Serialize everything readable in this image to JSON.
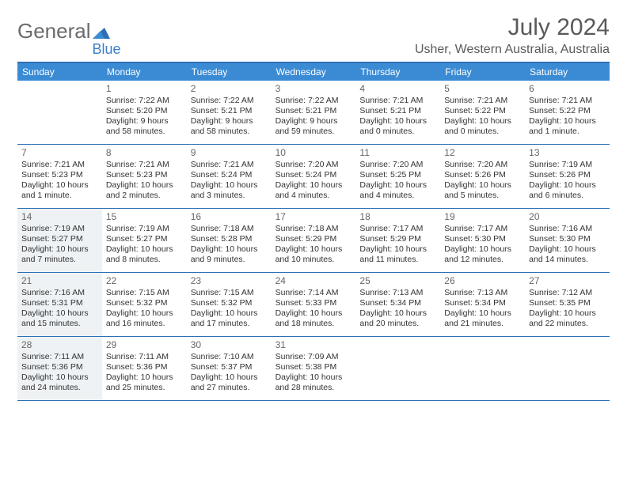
{
  "logo": {
    "text1": "General",
    "text2": "Blue"
  },
  "title": "July 2024",
  "subtitle": "Usher, Western Australia, Australia",
  "day_headers": [
    "Sunday",
    "Monday",
    "Tuesday",
    "Wednesday",
    "Thursday",
    "Friday",
    "Saturday"
  ],
  "colors": {
    "header_bg": "#3b8bd4",
    "border": "#2d6fb3",
    "shaded": "#eef2f5",
    "text": "#333333",
    "muted": "#666666"
  },
  "weeks": [
    [
      {
        "day": "",
        "sunrise": "",
        "sunset": "",
        "daylight": "",
        "shaded": false
      },
      {
        "day": "1",
        "sunrise": "Sunrise: 7:22 AM",
        "sunset": "Sunset: 5:20 PM",
        "daylight": "Daylight: 9 hours and 58 minutes.",
        "shaded": false
      },
      {
        "day": "2",
        "sunrise": "Sunrise: 7:22 AM",
        "sunset": "Sunset: 5:21 PM",
        "daylight": "Daylight: 9 hours and 58 minutes.",
        "shaded": false
      },
      {
        "day": "3",
        "sunrise": "Sunrise: 7:22 AM",
        "sunset": "Sunset: 5:21 PM",
        "daylight": "Daylight: 9 hours and 59 minutes.",
        "shaded": false
      },
      {
        "day": "4",
        "sunrise": "Sunrise: 7:21 AM",
        "sunset": "Sunset: 5:21 PM",
        "daylight": "Daylight: 10 hours and 0 minutes.",
        "shaded": false
      },
      {
        "day": "5",
        "sunrise": "Sunrise: 7:21 AM",
        "sunset": "Sunset: 5:22 PM",
        "daylight": "Daylight: 10 hours and 0 minutes.",
        "shaded": false
      },
      {
        "day": "6",
        "sunrise": "Sunrise: 7:21 AM",
        "sunset": "Sunset: 5:22 PM",
        "daylight": "Daylight: 10 hours and 1 minute.",
        "shaded": false
      }
    ],
    [
      {
        "day": "7",
        "sunrise": "Sunrise: 7:21 AM",
        "sunset": "Sunset: 5:23 PM",
        "daylight": "Daylight: 10 hours and 1 minute.",
        "shaded": false
      },
      {
        "day": "8",
        "sunrise": "Sunrise: 7:21 AM",
        "sunset": "Sunset: 5:23 PM",
        "daylight": "Daylight: 10 hours and 2 minutes.",
        "shaded": false
      },
      {
        "day": "9",
        "sunrise": "Sunrise: 7:21 AM",
        "sunset": "Sunset: 5:24 PM",
        "daylight": "Daylight: 10 hours and 3 minutes.",
        "shaded": false
      },
      {
        "day": "10",
        "sunrise": "Sunrise: 7:20 AM",
        "sunset": "Sunset: 5:24 PM",
        "daylight": "Daylight: 10 hours and 4 minutes.",
        "shaded": false
      },
      {
        "day": "11",
        "sunrise": "Sunrise: 7:20 AM",
        "sunset": "Sunset: 5:25 PM",
        "daylight": "Daylight: 10 hours and 4 minutes.",
        "shaded": false
      },
      {
        "day": "12",
        "sunrise": "Sunrise: 7:20 AM",
        "sunset": "Sunset: 5:26 PM",
        "daylight": "Daylight: 10 hours and 5 minutes.",
        "shaded": false
      },
      {
        "day": "13",
        "sunrise": "Sunrise: 7:19 AM",
        "sunset": "Sunset: 5:26 PM",
        "daylight": "Daylight: 10 hours and 6 minutes.",
        "shaded": false
      }
    ],
    [
      {
        "day": "14",
        "sunrise": "Sunrise: 7:19 AM",
        "sunset": "Sunset: 5:27 PM",
        "daylight": "Daylight: 10 hours and 7 minutes.",
        "shaded": true
      },
      {
        "day": "15",
        "sunrise": "Sunrise: 7:19 AM",
        "sunset": "Sunset: 5:27 PM",
        "daylight": "Daylight: 10 hours and 8 minutes.",
        "shaded": false
      },
      {
        "day": "16",
        "sunrise": "Sunrise: 7:18 AM",
        "sunset": "Sunset: 5:28 PM",
        "daylight": "Daylight: 10 hours and 9 minutes.",
        "shaded": false
      },
      {
        "day": "17",
        "sunrise": "Sunrise: 7:18 AM",
        "sunset": "Sunset: 5:29 PM",
        "daylight": "Daylight: 10 hours and 10 minutes.",
        "shaded": false
      },
      {
        "day": "18",
        "sunrise": "Sunrise: 7:17 AM",
        "sunset": "Sunset: 5:29 PM",
        "daylight": "Daylight: 10 hours and 11 minutes.",
        "shaded": false
      },
      {
        "day": "19",
        "sunrise": "Sunrise: 7:17 AM",
        "sunset": "Sunset: 5:30 PM",
        "daylight": "Daylight: 10 hours and 12 minutes.",
        "shaded": false
      },
      {
        "day": "20",
        "sunrise": "Sunrise: 7:16 AM",
        "sunset": "Sunset: 5:30 PM",
        "daylight": "Daylight: 10 hours and 14 minutes.",
        "shaded": false
      }
    ],
    [
      {
        "day": "21",
        "sunrise": "Sunrise: 7:16 AM",
        "sunset": "Sunset: 5:31 PM",
        "daylight": "Daylight: 10 hours and 15 minutes.",
        "shaded": true
      },
      {
        "day": "22",
        "sunrise": "Sunrise: 7:15 AM",
        "sunset": "Sunset: 5:32 PM",
        "daylight": "Daylight: 10 hours and 16 minutes.",
        "shaded": false
      },
      {
        "day": "23",
        "sunrise": "Sunrise: 7:15 AM",
        "sunset": "Sunset: 5:32 PM",
        "daylight": "Daylight: 10 hours and 17 minutes.",
        "shaded": false
      },
      {
        "day": "24",
        "sunrise": "Sunrise: 7:14 AM",
        "sunset": "Sunset: 5:33 PM",
        "daylight": "Daylight: 10 hours and 18 minutes.",
        "shaded": false
      },
      {
        "day": "25",
        "sunrise": "Sunrise: 7:13 AM",
        "sunset": "Sunset: 5:34 PM",
        "daylight": "Daylight: 10 hours and 20 minutes.",
        "shaded": false
      },
      {
        "day": "26",
        "sunrise": "Sunrise: 7:13 AM",
        "sunset": "Sunset: 5:34 PM",
        "daylight": "Daylight: 10 hours and 21 minutes.",
        "shaded": false
      },
      {
        "day": "27",
        "sunrise": "Sunrise: 7:12 AM",
        "sunset": "Sunset: 5:35 PM",
        "daylight": "Daylight: 10 hours and 22 minutes.",
        "shaded": false
      }
    ],
    [
      {
        "day": "28",
        "sunrise": "Sunrise: 7:11 AM",
        "sunset": "Sunset: 5:36 PM",
        "daylight": "Daylight: 10 hours and 24 minutes.",
        "shaded": true
      },
      {
        "day": "29",
        "sunrise": "Sunrise: 7:11 AM",
        "sunset": "Sunset: 5:36 PM",
        "daylight": "Daylight: 10 hours and 25 minutes.",
        "shaded": false
      },
      {
        "day": "30",
        "sunrise": "Sunrise: 7:10 AM",
        "sunset": "Sunset: 5:37 PM",
        "daylight": "Daylight: 10 hours and 27 minutes.",
        "shaded": false
      },
      {
        "day": "31",
        "sunrise": "Sunrise: 7:09 AM",
        "sunset": "Sunset: 5:38 PM",
        "daylight": "Daylight: 10 hours and 28 minutes.",
        "shaded": false
      },
      {
        "day": "",
        "sunrise": "",
        "sunset": "",
        "daylight": "",
        "shaded": false
      },
      {
        "day": "",
        "sunrise": "",
        "sunset": "",
        "daylight": "",
        "shaded": false
      },
      {
        "day": "",
        "sunrise": "",
        "sunset": "",
        "daylight": "",
        "shaded": false
      }
    ]
  ]
}
